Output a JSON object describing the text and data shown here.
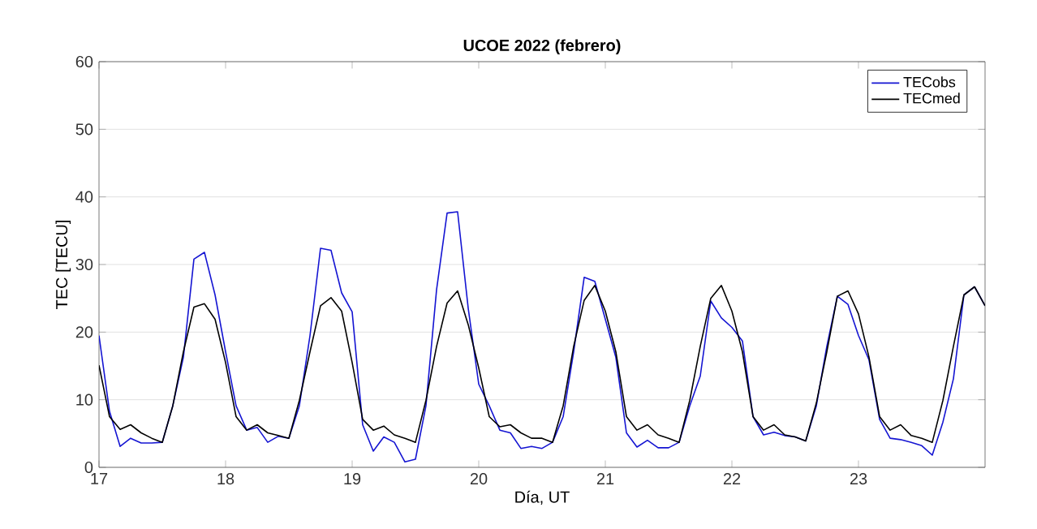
{
  "chart_data": {
    "type": "line",
    "title": "UCOE 2022 (febrero)",
    "xlabel": "Día, UT",
    "ylabel": "TEC [TECU]",
    "x": [
      17,
      17.083,
      17.167,
      17.25,
      17.333,
      17.417,
      17.5,
      17.583,
      17.667,
      17.75,
      17.833,
      17.917,
      18,
      18.083,
      18.167,
      18.25,
      18.333,
      18.417,
      18.5,
      18.583,
      18.667,
      18.75,
      18.833,
      18.917,
      19,
      19.083,
      19.167,
      19.25,
      19.333,
      19.417,
      19.5,
      19.583,
      19.667,
      19.75,
      19.833,
      19.917,
      20,
      20.083,
      20.167,
      20.25,
      20.333,
      20.417,
      20.5,
      20.583,
      20.667,
      20.75,
      20.833,
      20.917,
      21,
      21.083,
      21.167,
      21.25,
      21.333,
      21.417,
      21.5,
      21.583,
      21.667,
      21.75,
      21.833,
      21.917,
      22,
      22.083,
      22.167,
      22.25,
      22.333,
      22.417,
      22.5,
      22.583,
      22.667,
      22.75,
      22.833,
      22.917,
      23,
      23.083,
      23.167,
      23.25,
      23.333,
      23.417,
      23.5,
      23.583,
      23.667,
      23.75,
      23.833,
      23.917,
      24
    ],
    "series": [
      {
        "name": "TECobs",
        "color": "#1414d2",
        "values": [
          19.5,
          8.3,
          3.1,
          4.3,
          3.6,
          3.6,
          3.7,
          9.1,
          16.3,
          30.8,
          31.8,
          25.5,
          17.1,
          9.1,
          5.5,
          5.9,
          3.7,
          4.6,
          4.3,
          9.1,
          19.5,
          32.4,
          32.1,
          25.8,
          23,
          6.3,
          2.4,
          4.5,
          3.7,
          0.8,
          1.2,
          9.1,
          26.3,
          37.6,
          37.8,
          23.5,
          12.3,
          9.1,
          5.5,
          5.1,
          2.8,
          3.1,
          2.8,
          3.7,
          7.5,
          17.1,
          28.1,
          27.5,
          21.9,
          16.3,
          5.1,
          3,
          4,
          2.9,
          2.9,
          3.7,
          9.1,
          13.5,
          24.6,
          22.1,
          20.7,
          18.7,
          7.5,
          4.8,
          5.2,
          4.7,
          4.5,
          3.9,
          9.1,
          17.9,
          25.3,
          24.1,
          19.5,
          15.9,
          7.1,
          4.3,
          4.1,
          3.7,
          3.2,
          1.8,
          6.7,
          13.1,
          25.5,
          26.7,
          23.9
        ]
      },
      {
        "name": "TECmed",
        "color": "#000000",
        "values": [
          15.1,
          7.5,
          5.6,
          6.3,
          5.1,
          4.3,
          3.7,
          9.1,
          17.1,
          23.7,
          24.2,
          21.9,
          15.5,
          7.5,
          5.5,
          6.3,
          5.1,
          4.7,
          4.3,
          9.9,
          17.1,
          23.9,
          25.1,
          23.1,
          15.5,
          7.1,
          5.5,
          6.1,
          4.8,
          4.3,
          3.7,
          9.9,
          17.9,
          24.3,
          26.1,
          21.1,
          14.7,
          7.5,
          6,
          6.3,
          5.1,
          4.3,
          4.3,
          3.7,
          9.1,
          17.9,
          24.7,
          26.9,
          23.1,
          17.1,
          7.5,
          5.5,
          6.3,
          4.8,
          4.3,
          3.7,
          9.9,
          17.9,
          25,
          26.9,
          23.1,
          17.1,
          7.5,
          5.5,
          6.3,
          4.8,
          4.5,
          3.9,
          9.5,
          17.1,
          25.3,
          26.1,
          22.7,
          16.3,
          7.5,
          5.5,
          6.3,
          4.7,
          4.3,
          3.7,
          9.9,
          17.9,
          25.5,
          26.7,
          23.9
        ]
      }
    ],
    "xlim": [
      17,
      24
    ],
    "ylim": [
      0,
      60
    ],
    "xticks": [
      17,
      18,
      19,
      20,
      21,
      22,
      23
    ],
    "yticks": [
      0,
      10,
      20,
      30,
      40,
      50,
      60
    ],
    "grid": "y",
    "legend": "top right",
    "line_style": "solid",
    "marker": "none"
  }
}
